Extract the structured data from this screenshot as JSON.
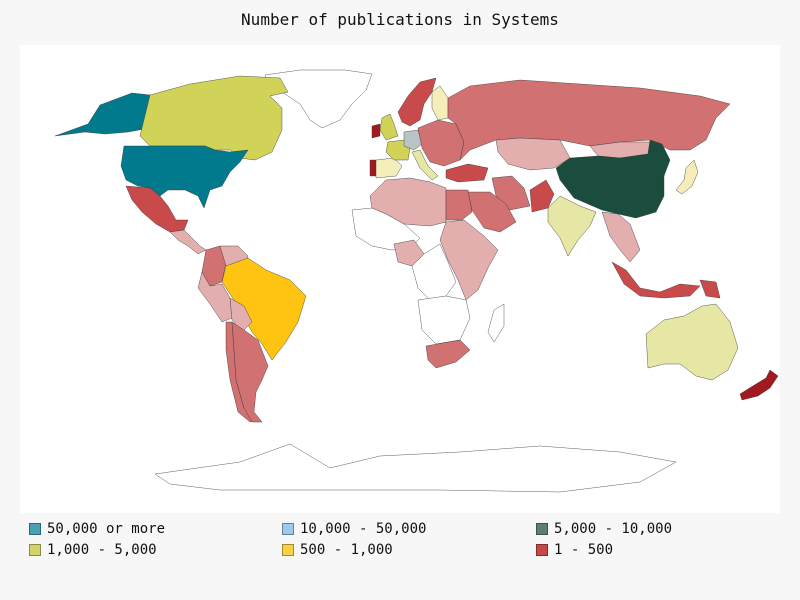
{
  "title": "Number of publications in Systems",
  "legend": [
    {
      "label": "50,000 or more",
      "color": "#4b9fb5"
    },
    {
      "label": "10,000 - 50,000",
      "color": "#9ec9ea"
    },
    {
      "label": "5,000 - 10,000",
      "color": "#5d7f6e"
    },
    {
      "label": "1,000 - 5,000",
      "color": "#d2d46a"
    },
    {
      "label": "500 - 1,000",
      "color": "#f8cf45"
    },
    {
      "label": "1 - 500",
      "color": "#c84747"
    }
  ],
  "fills": {
    "top": "#007a8c",
    "mid": "#1a4d3e",
    "high": "#d0d357",
    "upper_mid": "#ffc312",
    "low_red": "#d27171",
    "low_pink": "#e3aeae",
    "low_dark": "#a11a1f",
    "low_bright": "#c94a4a",
    "low_light": "#e6e6a5",
    "low_cream": "#f5eebb",
    "grey": "#b8c3c3",
    "none": "#ffffff"
  },
  "countries": [
    {
      "name": "United States",
      "level": "top"
    },
    {
      "name": "Alaska",
      "level": "top"
    },
    {
      "name": "Canada",
      "level": "high"
    },
    {
      "name": "Greenland",
      "level": "none"
    },
    {
      "name": "Mexico",
      "level": "low_bright"
    },
    {
      "name": "Central America",
      "level": "low_pink"
    },
    {
      "name": "Colombia",
      "level": "low_red"
    },
    {
      "name": "Venezuela",
      "level": "low_pink"
    },
    {
      "name": "Peru",
      "level": "low_pink"
    },
    {
      "name": "Brazil",
      "level": "upper_mid"
    },
    {
      "name": "Bolivia",
      "level": "low_pink"
    },
    {
      "name": "Argentina",
      "level": "low_red"
    },
    {
      "name": "Chile",
      "level": "low_red"
    },
    {
      "name": "United Kingdom",
      "level": "high"
    },
    {
      "name": "Ireland",
      "level": "low_dark"
    },
    {
      "name": "France",
      "level": "high"
    },
    {
      "name": "Spain",
      "level": "low_cream"
    },
    {
      "name": "Portugal",
      "level": "low_dark"
    },
    {
      "name": "Germany",
      "level": "grey"
    },
    {
      "name": "Italy",
      "level": "low_light"
    },
    {
      "name": "Scandinavia",
      "level": "low_bright"
    },
    {
      "name": "Finland",
      "level": "low_cream"
    },
    {
      "name": "Eastern Europe",
      "level": "low_red"
    },
    {
      "name": "Russia",
      "level": "low_red"
    },
    {
      "name": "Kazakhstan",
      "level": "low_pink"
    },
    {
      "name": "Turkey",
      "level": "low_bright"
    },
    {
      "name": "Iran",
      "level": "low_red"
    },
    {
      "name": "Saudi Arabia",
      "level": "low_red"
    },
    {
      "name": "Pakistan",
      "level": "low_bright"
    },
    {
      "name": "India",
      "level": "low_light"
    },
    {
      "name": "China",
      "level": "mid"
    },
    {
      "name": "Mongolia",
      "level": "low_pink"
    },
    {
      "name": "Japan",
      "level": "low_cream"
    },
    {
      "name": "South East Asia",
      "level": "low_pink"
    },
    {
      "name": "Indonesia",
      "level": "low_bright"
    },
    {
      "name": "Papua New Guinea",
      "level": "low_bright"
    },
    {
      "name": "Australia",
      "level": "low_light"
    },
    {
      "name": "New Zealand",
      "level": "low_dark"
    },
    {
      "name": "North Africa",
      "level": "low_pink"
    },
    {
      "name": "Egypt",
      "level": "low_red"
    },
    {
      "name": "Sahel",
      "level": "none"
    },
    {
      "name": "Central Africa",
      "level": "none"
    },
    {
      "name": "East Africa",
      "level": "low_pink"
    },
    {
      "name": "Nigeria",
      "level": "low_pink"
    },
    {
      "name": "Southern Africa",
      "level": "none"
    },
    {
      "name": "South Africa",
      "level": "low_red"
    },
    {
      "name": "Madagascar",
      "level": "none"
    },
    {
      "name": "Antarctica",
      "level": "none"
    }
  ]
}
